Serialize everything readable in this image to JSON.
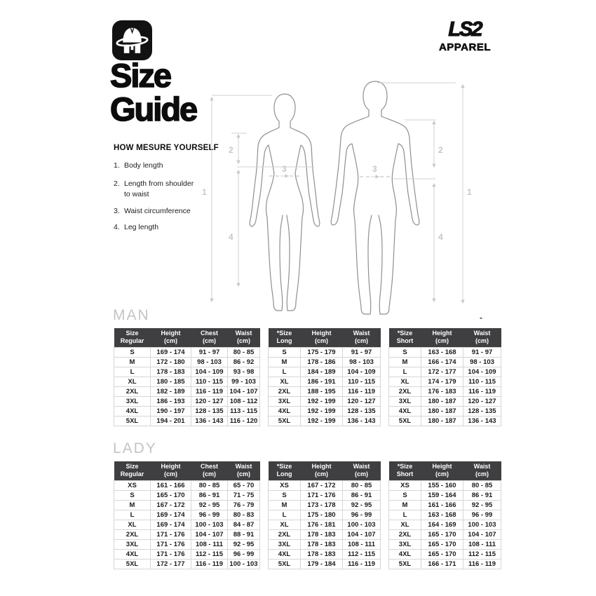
{
  "header": {
    "logo_icon": "ls2-helmet-logo",
    "brand_name": "LS2",
    "brand_sub": "APPAREL"
  },
  "title": {
    "line1": "Size",
    "line2": "Guide"
  },
  "how_to": {
    "heading": "HOW MESURE YOURSELF",
    "items": [
      {
        "num": "1.",
        "text": "Body length"
      },
      {
        "num": "2.",
        "text": "Length from shoulder to waist"
      },
      {
        "num": "3.",
        "text": "Waist circumference"
      },
      {
        "num": "4.",
        "text": "Leg length"
      }
    ]
  },
  "figure_labels": {
    "n1": "1",
    "n2": "2",
    "n3": "3",
    "n4": "4"
  },
  "colors": {
    "table_header_bg": "#3f3f42",
    "section_label_gray": "#c4c4c4",
    "figure_line_gray": "#d0d0d0",
    "text_black": "#111111"
  },
  "man": {
    "label": "MAN",
    "tables": [
      {
        "columns": [
          [
            "Size",
            "Regular"
          ],
          [
            "Height",
            "(cm)"
          ],
          [
            "Chest",
            "(cm)"
          ],
          [
            "Waist",
            "(cm)"
          ]
        ],
        "rows": [
          [
            "S",
            "169 - 174",
            "91 - 97",
            "80 - 85"
          ],
          [
            "M",
            "172 - 180",
            "98 - 103",
            "86 - 92"
          ],
          [
            "L",
            "178 - 183",
            "104 - 109",
            "93 - 98"
          ],
          [
            "XL",
            "180 - 185",
            "110 - 115",
            "99 - 103"
          ],
          [
            "2XL",
            "182 - 189",
            "116 - 119",
            "104 - 107"
          ],
          [
            "3XL",
            "186 - 193",
            "120 - 127",
            "108 - 112"
          ],
          [
            "4XL",
            "190 - 197",
            "128 - 135",
            "113 - 115"
          ],
          [
            "5XL",
            "194 - 201",
            "136 - 143",
            "116 - 120"
          ]
        ]
      },
      {
        "columns": [
          [
            "*Size",
            "Long"
          ],
          [
            "Height",
            "(cm)"
          ],
          [
            "Waist",
            "(cm)"
          ]
        ],
        "rows": [
          [
            "S",
            "175 - 179",
            "91 - 97"
          ],
          [
            "M",
            "178 - 186",
            "98 - 103"
          ],
          [
            "L",
            "184 - 189",
            "104 - 109"
          ],
          [
            "XL",
            "186 - 191",
            "110 - 115"
          ],
          [
            "2XL",
            "188 - 195",
            "116 - 119"
          ],
          [
            "3XL",
            "192 - 199",
            "120 - 127"
          ],
          [
            "4XL",
            "192 - 199",
            "128 - 135"
          ],
          [
            "5XL",
            "192 - 199",
            "136 - 143"
          ]
        ]
      },
      {
        "columns": [
          [
            "*Size",
            "Short"
          ],
          [
            "Height",
            "(cm)"
          ],
          [
            "Waist",
            "(cm)"
          ]
        ],
        "rows": [
          [
            "S",
            "163 - 168",
            "91 - 97"
          ],
          [
            "M",
            "166 - 174",
            "98 - 103"
          ],
          [
            "L",
            "172 - 177",
            "104 - 109"
          ],
          [
            "XL",
            "174 - 179",
            "110 - 115"
          ],
          [
            "2XL",
            "176 - 183",
            "116 - 119"
          ],
          [
            "3XL",
            "180 - 187",
            "120 - 127"
          ],
          [
            "4XL",
            "180 - 187",
            "128 - 135"
          ],
          [
            "5XL",
            "180 - 187",
            "136 - 143"
          ]
        ]
      }
    ]
  },
  "lady": {
    "label": "LADY",
    "tables": [
      {
        "columns": [
          [
            "Size",
            "Regular"
          ],
          [
            "Height",
            "(cm)"
          ],
          [
            "Chest",
            "(cm)"
          ],
          [
            "Waist",
            "(cm)"
          ]
        ],
        "rows": [
          [
            "XS",
            "161 - 166",
            "80 - 85",
            "65 - 70"
          ],
          [
            "S",
            "165 - 170",
            "86 - 91",
            "71 - 75"
          ],
          [
            "M",
            "167 - 172",
            "92 - 95",
            "76 - 79"
          ],
          [
            "L",
            "169 - 174",
            "96 - 99",
            "80 - 83"
          ],
          [
            "XL",
            "169 - 174",
            "100 - 103",
            "84 - 87"
          ],
          [
            "2XL",
            "171 - 176",
            "104 - 107",
            "88 - 91"
          ],
          [
            "3XL",
            "171 - 176",
            "108 - 111",
            "92 - 95"
          ],
          [
            "4XL",
            "171 - 176",
            "112 - 115",
            "96 - 99"
          ],
          [
            "5XL",
            "172 - 177",
            "116 - 119",
            "100 - 103"
          ]
        ]
      },
      {
        "columns": [
          [
            "*Size",
            "Long"
          ],
          [
            "Height",
            "(cm)"
          ],
          [
            "Waist",
            "(cm)"
          ]
        ],
        "rows": [
          [
            "XS",
            "167 - 172",
            "80 - 85"
          ],
          [
            "S",
            "171 - 176",
            "86 - 91"
          ],
          [
            "M",
            "173 - 178",
            "92 - 95"
          ],
          [
            "L",
            "175 - 180",
            "96 - 99"
          ],
          [
            "XL",
            "176 - 181",
            "100 - 103"
          ],
          [
            "2XL",
            "178 - 183",
            "104 - 107"
          ],
          [
            "3XL",
            "178 - 183",
            "108 - 111"
          ],
          [
            "4XL",
            "178 - 183",
            "112 - 115"
          ],
          [
            "5XL",
            "179 - 184",
            "116 - 119"
          ]
        ]
      },
      {
        "columns": [
          [
            "*Size",
            "Short"
          ],
          [
            "Height",
            "(cm)"
          ],
          [
            "Waist",
            "(cm)"
          ]
        ],
        "rows": [
          [
            "XS",
            "155 - 160",
            "80 - 85"
          ],
          [
            "S",
            "159 - 164",
            "86 - 91"
          ],
          [
            "M",
            "161 - 166",
            "92 - 95"
          ],
          [
            "L",
            "163 - 168",
            "96 - 99"
          ],
          [
            "XL",
            "164 - 169",
            "100 - 103"
          ],
          [
            "2XL",
            "165 - 170",
            "104 - 107"
          ],
          [
            "3XL",
            "165 - 170",
            "108 - 111"
          ],
          [
            "4XL",
            "165 - 170",
            "112 - 115"
          ],
          [
            "5XL",
            "166 - 171",
            "116 - 119"
          ]
        ]
      }
    ]
  },
  "misc": {
    "dash_mark": "-"
  }
}
